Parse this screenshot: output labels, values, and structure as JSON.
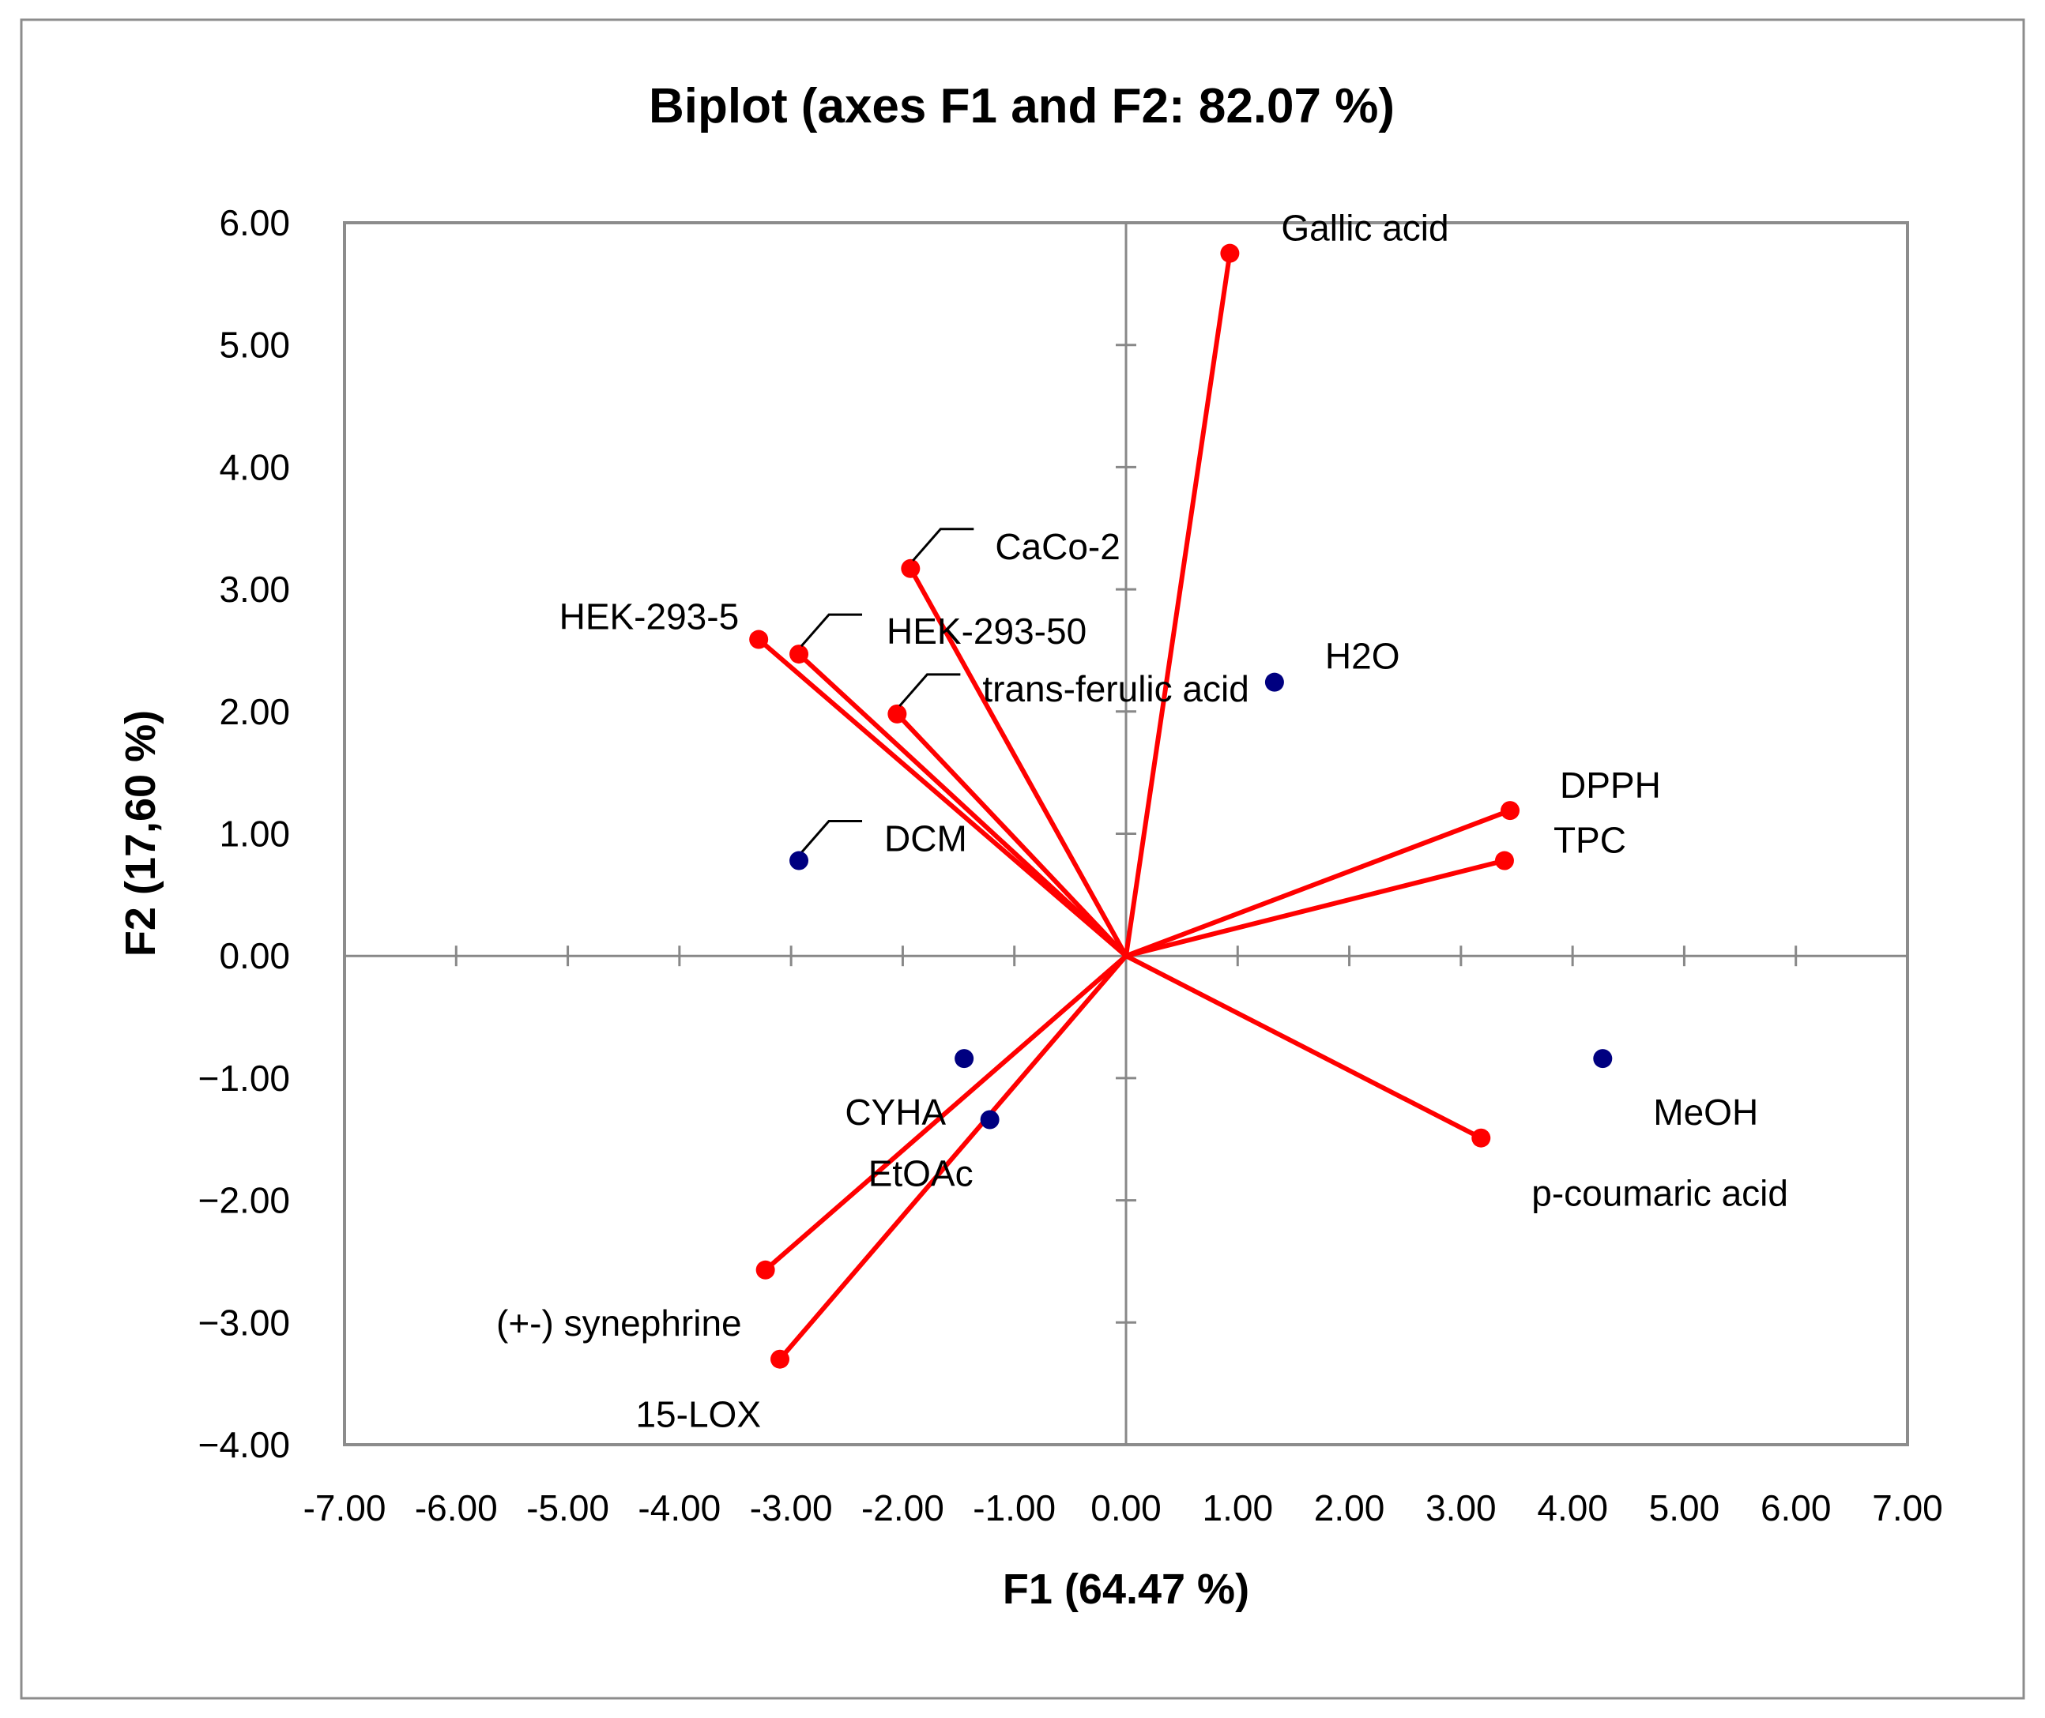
{
  "chart_data": {
    "type": "scatter",
    "subtype": "pca-biplot",
    "title": "Biplot (axes F1 and F2: 82.07 %)",
    "xlabel": "F1 (64.47 %)",
    "ylabel": "F2 (17,60 %)",
    "xlim": [
      -7,
      7
    ],
    "ylim": [
      -4,
      6
    ],
    "xticks": [
      "-7.00",
      "-6.00",
      "-5.00",
      "-4.00",
      "-3.00",
      "-2.00",
      "-1.00",
      "0.00",
      "1.00",
      "2.00",
      "3.00",
      "4.00",
      "5.00",
      "6.00",
      "7.00"
    ],
    "yticks": [
      "6.00",
      "5.00",
      "4.00",
      "3.00",
      "2.00",
      "1.00",
      "0.00",
      "−1.00",
      "−2.00",
      "−3.00",
      "−4.00"
    ],
    "colors": {
      "variables": "#ff0000",
      "observations": "#000080",
      "axes": "#888888"
    },
    "variables": [
      {
        "name": "Gallic acid",
        "x": 0.93,
        "y": 5.75
      },
      {
        "name": "CaCo-2",
        "x": -1.93,
        "y": 3.17
      },
      {
        "name": "HEK-293-5",
        "x": -3.29,
        "y": 2.59
      },
      {
        "name": "HEK-293-50",
        "x": -2.93,
        "y": 2.47
      },
      {
        "name": "trans-ferulic acid",
        "x": -2.05,
        "y": 1.98
      },
      {
        "name": "DPPH",
        "x": 3.44,
        "y": 1.19
      },
      {
        "name": "TPC",
        "x": 3.39,
        "y": 0.78
      },
      {
        "name": "p-coumaric acid",
        "x": 3.18,
        "y": -1.49
      },
      {
        "name": "(+-) synephrine",
        "x": -3.23,
        "y": -2.57
      },
      {
        "name": "15-LOX",
        "x": -3.1,
        "y": -3.3
      }
    ],
    "observations": [
      {
        "name": "H2O",
        "x": 1.33,
        "y": 2.24
      },
      {
        "name": "DCM",
        "x": -2.93,
        "y": 0.78
      },
      {
        "name": "CYHA",
        "x": -1.45,
        "y": -0.84
      },
      {
        "name": "EtOAc",
        "x": -1.22,
        "y": -1.34
      },
      {
        "name": "MeOH",
        "x": 4.27,
        "y": -0.84
      }
    ]
  }
}
